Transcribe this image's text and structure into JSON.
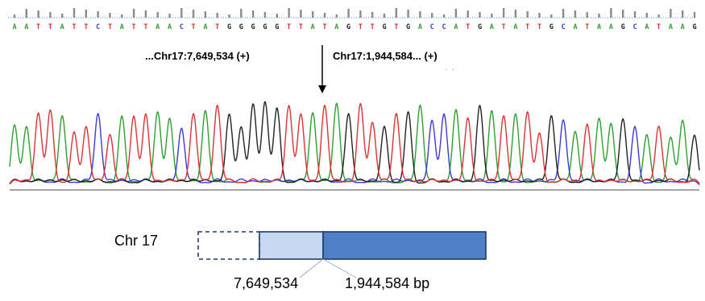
{
  "sequence": "AATTATTCTATTAACTATGGGGGTTATAGTTGTGACCATGATATTGCATAAGCATAAG",
  "colors": {
    "A": "#2ca02c",
    "C": "#3a3ad6",
    "G": "#222222",
    "T": "#e03131"
  },
  "junction": {
    "left_label": "...Chr17:7,649,534 (+)",
    "right_label": "Chr17:1,944,584... (+)",
    "marker": ". ."
  },
  "chromosome": {
    "label": "Chr 17",
    "left_coord": "7,649,534",
    "right_coord": "1,944,584 bp",
    "colors": {
      "light": "#c7d9f0",
      "dark": "#4f7fc4",
      "border": "#1f3a68"
    }
  },
  "peak_heights": [
    0.62,
    0.6,
    0.73,
    0.76,
    0.7,
    0.55,
    0.6,
    0.72,
    0.52,
    0.7,
    0.7,
    0.72,
    0.74,
    0.68,
    0.58,
    0.72,
    0.75,
    0.8,
    0.72,
    0.6,
    0.82,
    0.84,
    0.78,
    0.8,
    0.72,
    0.73,
    0.8,
    0.82,
    0.72,
    0.82,
    0.64,
    0.6,
    0.72,
    0.74,
    0.8,
    0.66,
    0.72,
    0.76,
    0.68,
    0.8,
    0.75,
    0.7,
    0.72,
    0.74,
    0.54,
    0.7,
    0.66,
    0.55,
    0.62,
    0.68,
    0.63,
    0.67,
    0.6,
    0.52,
    0.6,
    0.5,
    0.66,
    0.52
  ]
}
